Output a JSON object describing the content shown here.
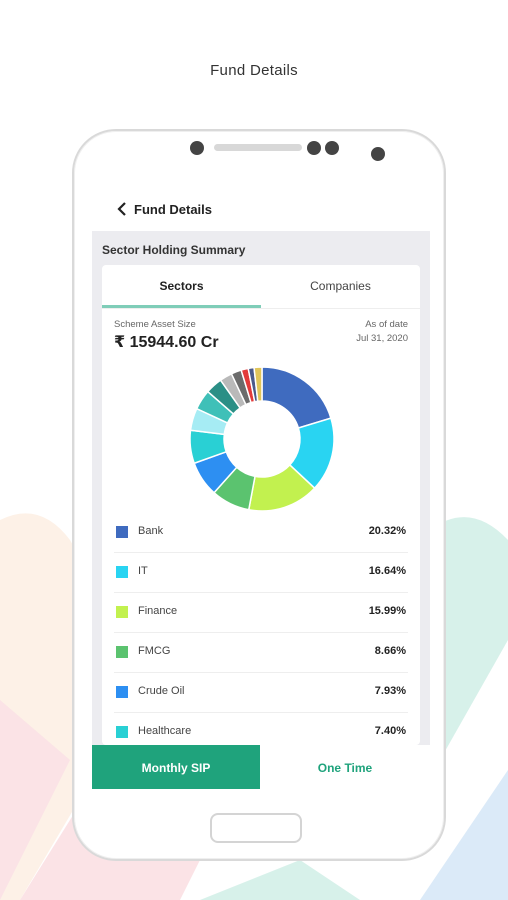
{
  "caption": "Fund Details",
  "header": {
    "title": "Fund Details",
    "back_icon": "chevron-left-icon"
  },
  "section_title": "Sector Holding Summary",
  "tabs": [
    {
      "label": "Sectors",
      "active": true
    },
    {
      "label": "Companies",
      "active": false
    }
  ],
  "asset": {
    "label": "Scheme Asset Size",
    "value": "₹ 15944.60 Cr"
  },
  "as_of": {
    "label": "As of date",
    "date": "Jul 31, 2020"
  },
  "chart_data": {
    "type": "pie",
    "donut": true,
    "slices": [
      {
        "label": "Bank",
        "value": 20.32,
        "color": "#3f6bbf"
      },
      {
        "label": "IT",
        "value": 16.64,
        "color": "#29d4f2"
      },
      {
        "label": "Finance",
        "value": 15.99,
        "color": "#c2f14f"
      },
      {
        "label": "FMCG",
        "value": 8.66,
        "color": "#5bc36f"
      },
      {
        "label": "Crude Oil",
        "value": 7.93,
        "color": "#2d8ff2"
      },
      {
        "label": "Healthcare",
        "value": 7.4,
        "color": "#29d0d4"
      },
      {
        "label": "",
        "value": 5.0,
        "color": "#a6ecf4"
      },
      {
        "label": "",
        "value": 4.5,
        "color": "#3fc0b8"
      },
      {
        "label": "",
        "value": 3.8,
        "color": "#2b8f86"
      },
      {
        "label": "",
        "value": 2.8,
        "color": "#b9b9b9"
      },
      {
        "label": "",
        "value": 2.3,
        "color": "#6b6b6b"
      },
      {
        "label": "",
        "value": 1.6,
        "color": "#e23a3a"
      },
      {
        "label": "",
        "value": 1.3,
        "color": "#4a5a8a"
      },
      {
        "label": "",
        "value": 1.77,
        "color": "#e0c55a"
      }
    ]
  },
  "sectors": [
    {
      "label": "Bank",
      "value": "20.32%",
      "color": "#3f6bbf"
    },
    {
      "label": "IT",
      "value": "16.64%",
      "color": "#29d4f2"
    },
    {
      "label": "Finance",
      "value": "15.99%",
      "color": "#c2f14f"
    },
    {
      "label": "FMCG",
      "value": "8.66%",
      "color": "#5bc36f"
    },
    {
      "label": "Crude Oil",
      "value": "7.93%",
      "color": "#2d8ff2"
    },
    {
      "label": "Healthcare",
      "value": "7.40%",
      "color": "#29d0d4"
    }
  ],
  "buttons": {
    "monthly_sip": "Monthly SIP",
    "one_time": "One Time"
  },
  "colors": {
    "accent": "#1fa37c",
    "tab_underline": "#7fcdb8"
  }
}
